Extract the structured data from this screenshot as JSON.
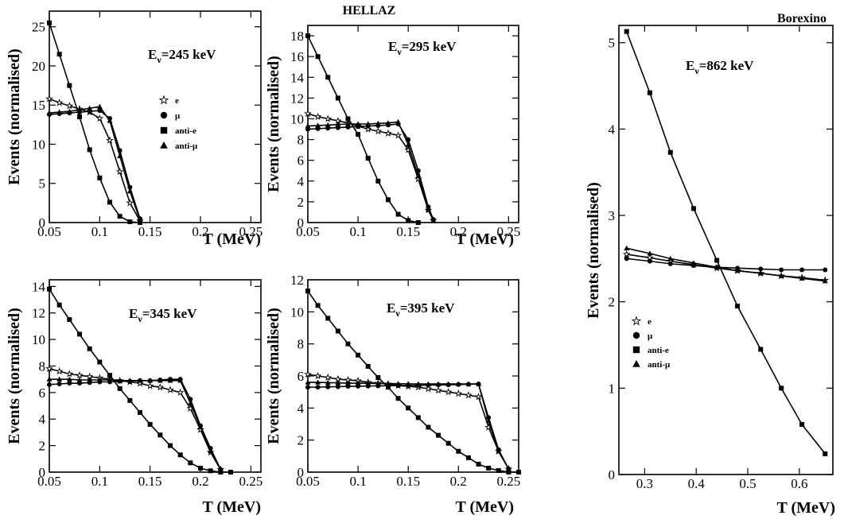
{
  "figure": {
    "group_titles": {
      "hellaz": "HELLAZ",
      "borexino": "Borexino"
    }
  },
  "legend_labels": [
    "e",
    "μ",
    "anti-e",
    "anti-μ"
  ],
  "chart_data": [
    {
      "id": "p245",
      "type": "line",
      "energy_label": {
        "main": "E",
        "sub": "ν",
        "rest": "=245 keV"
      },
      "xlabel": "T (MeV)",
      "ylabel": "Events (normalised)",
      "xlim": [
        0.05,
        0.26
      ],
      "ylim": [
        0,
        27
      ],
      "xticks": [
        0.05,
        0.1,
        0.15,
        0.2,
        0.25
      ],
      "xtick_labels": [
        "0.05",
        "0.1",
        "0.15",
        "0.2",
        "0.25"
      ],
      "yticks": [
        0,
        5,
        10,
        15,
        20,
        25
      ],
      "ytick_labels": [
        "0",
        "5",
        "10",
        "15",
        "20",
        "25"
      ],
      "legend": true,
      "series": [
        {
          "name": "e",
          "marker": "star",
          "x": [
            0.05,
            0.06,
            0.07,
            0.08,
            0.09,
            0.1,
            0.11,
            0.12,
            0.13,
            0.14
          ],
          "y": [
            15.8,
            15.3,
            14.9,
            14.5,
            14.1,
            13.3,
            10.5,
            6.5,
            2.5,
            0.2
          ]
        },
        {
          "name": "μ",
          "marker": "circle",
          "x": [
            0.05,
            0.06,
            0.07,
            0.08,
            0.09,
            0.1,
            0.11,
            0.12,
            0.13,
            0.14
          ],
          "y": [
            13.8,
            13.9,
            14.0,
            14.1,
            14.2,
            14.3,
            13.3,
            9.2,
            4.5,
            0.5
          ]
        },
        {
          "name": "anti-e",
          "marker": "square",
          "x": [
            0.05,
            0.06,
            0.07,
            0.08,
            0.09,
            0.1,
            0.11,
            0.12,
            0.13,
            0.14
          ],
          "y": [
            25.5,
            21.5,
            17.5,
            13.5,
            9.3,
            5.7,
            2.6,
            0.8,
            0.1,
            0.0
          ]
        },
        {
          "name": "anti-μ",
          "marker": "triangle",
          "x": [
            0.05,
            0.06,
            0.07,
            0.08,
            0.09,
            0.1,
            0.11,
            0.12,
            0.13,
            0.14
          ],
          "y": [
            14.0,
            14.1,
            14.2,
            14.4,
            14.6,
            14.8,
            13.0,
            8.5,
            4.0,
            0.3
          ]
        }
      ]
    },
    {
      "id": "p295",
      "type": "line",
      "energy_label": {
        "main": "E",
        "sub": "ν",
        "rest": "=295 keV"
      },
      "xlabel": "T (MeV)",
      "ylabel": "Events (normalised)",
      "xlim": [
        0.05,
        0.26
      ],
      "ylim": [
        0,
        19
      ],
      "xticks": [
        0.05,
        0.1,
        0.15,
        0.2,
        0.25
      ],
      "xtick_labels": [
        "0.05",
        "0.1",
        "0.15",
        "0.2",
        "0.25"
      ],
      "yticks": [
        0,
        2,
        4,
        6,
        8,
        10,
        12,
        14,
        16,
        18
      ],
      "ytick_labels": [
        "0",
        "2",
        "4",
        "6",
        "8",
        "10",
        "12",
        "14",
        "16",
        "18"
      ],
      "legend": false,
      "series": [
        {
          "name": "e",
          "marker": "star",
          "x": [
            0.05,
            0.06,
            0.07,
            0.08,
            0.09,
            0.1,
            0.11,
            0.12,
            0.13,
            0.14,
            0.15,
            0.16,
            0.17,
            0.175
          ],
          "y": [
            10.5,
            10.2,
            10.0,
            9.8,
            9.6,
            9.3,
            9.0,
            8.8,
            8.6,
            8.4,
            7.0,
            4.2,
            1.2,
            0.2
          ]
        },
        {
          "name": "μ",
          "marker": "circle",
          "x": [
            0.05,
            0.06,
            0.07,
            0.08,
            0.09,
            0.1,
            0.11,
            0.12,
            0.13,
            0.14,
            0.15,
            0.16,
            0.17,
            0.175
          ],
          "y": [
            9.0,
            9.05,
            9.1,
            9.15,
            9.2,
            9.25,
            9.3,
            9.35,
            9.4,
            9.5,
            8.0,
            5.0,
            1.5,
            0.3
          ]
        },
        {
          "name": "anti-e",
          "marker": "square",
          "x": [
            0.05,
            0.06,
            0.07,
            0.08,
            0.09,
            0.1,
            0.11,
            0.12,
            0.13,
            0.14,
            0.15,
            0.16
          ],
          "y": [
            18.0,
            16.0,
            14.0,
            12.0,
            10.0,
            8.5,
            6.2,
            4.0,
            2.2,
            0.8,
            0.2,
            0.0
          ]
        },
        {
          "name": "anti-μ",
          "marker": "triangle",
          "x": [
            0.05,
            0.06,
            0.07,
            0.08,
            0.09,
            0.1,
            0.11,
            0.12,
            0.13,
            0.14,
            0.15,
            0.16,
            0.17,
            0.175
          ],
          "y": [
            9.3,
            9.35,
            9.4,
            9.45,
            9.5,
            9.5,
            9.5,
            9.55,
            9.6,
            9.7,
            7.5,
            4.5,
            1.3,
            0.2
          ]
        }
      ]
    },
    {
      "id": "p345",
      "type": "line",
      "energy_label": {
        "main": "E",
        "sub": "ν",
        "rest": "=345 keV"
      },
      "xlabel": "T (MeV)",
      "ylabel": "Events (normalised)",
      "xlim": [
        0.05,
        0.26
      ],
      "ylim": [
        0,
        14.5
      ],
      "xticks": [
        0.05,
        0.1,
        0.15,
        0.2,
        0.25
      ],
      "xtick_labels": [
        "0.05",
        "0.1",
        "0.15",
        "0.2",
        "0.25"
      ],
      "yticks": [
        0,
        2,
        4,
        6,
        8,
        10,
        12,
        14
      ],
      "ytick_labels": [
        "0",
        "2",
        "4",
        "6",
        "8",
        "10",
        "12",
        "14"
      ],
      "legend": false,
      "series": [
        {
          "name": "e",
          "marker": "star",
          "x": [
            0.05,
            0.06,
            0.07,
            0.08,
            0.09,
            0.1,
            0.11,
            0.12,
            0.13,
            0.14,
            0.15,
            0.16,
            0.17,
            0.18,
            0.19,
            0.2,
            0.21,
            0.22
          ],
          "y": [
            7.8,
            7.6,
            7.4,
            7.3,
            7.2,
            7.1,
            7.0,
            6.9,
            6.8,
            6.7,
            6.5,
            6.4,
            6.2,
            6.0,
            4.8,
            3.2,
            1.5,
            0.2
          ]
        },
        {
          "name": "μ",
          "marker": "circle",
          "x": [
            0.05,
            0.06,
            0.07,
            0.08,
            0.09,
            0.1,
            0.11,
            0.12,
            0.13,
            0.14,
            0.15,
            0.16,
            0.17,
            0.18,
            0.19,
            0.2,
            0.21,
            0.22
          ],
          "y": [
            6.6,
            6.65,
            6.7,
            6.7,
            6.75,
            6.8,
            6.8,
            6.85,
            6.85,
            6.9,
            6.9,
            6.95,
            7.0,
            7.0,
            5.5,
            3.5,
            1.8,
            0.2
          ]
        },
        {
          "name": "anti-e",
          "marker": "square",
          "x": [
            0.05,
            0.06,
            0.07,
            0.08,
            0.09,
            0.1,
            0.11,
            0.12,
            0.13,
            0.14,
            0.15,
            0.16,
            0.17,
            0.18,
            0.19,
            0.2,
            0.21,
            0.22,
            0.23
          ],
          "y": [
            13.8,
            12.6,
            11.5,
            10.4,
            9.3,
            8.3,
            7.3,
            6.3,
            5.4,
            4.5,
            3.6,
            2.8,
            2.0,
            1.3,
            0.7,
            0.3,
            0.1,
            0.0,
            0.0
          ]
        },
        {
          "name": "anti-μ",
          "marker": "triangle",
          "x": [
            0.05,
            0.06,
            0.07,
            0.08,
            0.09,
            0.1,
            0.11,
            0.12,
            0.13,
            0.14,
            0.15,
            0.16,
            0.17,
            0.18,
            0.19,
            0.2,
            0.21,
            0.22
          ],
          "y": [
            7.0,
            7.0,
            7.0,
            6.95,
            6.95,
            6.95,
            6.95,
            6.9,
            6.9,
            6.9,
            6.9,
            6.9,
            6.9,
            6.9,
            5.2,
            3.4,
            1.6,
            0.2
          ]
        }
      ]
    },
    {
      "id": "p395",
      "type": "line",
      "energy_label": {
        "main": "E",
        "sub": "ν",
        "rest": "=395 keV"
      },
      "xlabel": "T (MeV)",
      "ylabel": "Events (normalised)",
      "xlim": [
        0.05,
        0.26
      ],
      "ylim": [
        0,
        12
      ],
      "xticks": [
        0.05,
        0.1,
        0.15,
        0.2,
        0.25
      ],
      "xtick_labels": [
        "0.05",
        "0.1",
        "0.15",
        "0.2",
        "0.25"
      ],
      "yticks": [
        0,
        2,
        4,
        6,
        8,
        10,
        12
      ],
      "ytick_labels": [
        "0",
        "2",
        "4",
        "6",
        "8",
        "10",
        "12"
      ],
      "legend": false,
      "series": [
        {
          "name": "e",
          "marker": "star",
          "x": [
            0.05,
            0.06,
            0.07,
            0.08,
            0.09,
            0.1,
            0.11,
            0.12,
            0.13,
            0.14,
            0.15,
            0.16,
            0.17,
            0.18,
            0.19,
            0.2,
            0.21,
            0.22,
            0.23,
            0.24,
            0.25
          ],
          "y": [
            6.1,
            6.0,
            5.9,
            5.8,
            5.75,
            5.7,
            5.6,
            5.55,
            5.5,
            5.4,
            5.35,
            5.3,
            5.2,
            5.1,
            5.0,
            4.9,
            4.8,
            4.7,
            2.8,
            1.3,
            0.2
          ]
        },
        {
          "name": "μ",
          "marker": "circle",
          "x": [
            0.05,
            0.06,
            0.07,
            0.08,
            0.09,
            0.1,
            0.11,
            0.12,
            0.13,
            0.14,
            0.15,
            0.16,
            0.17,
            0.18,
            0.19,
            0.2,
            0.21,
            0.22,
            0.23,
            0.24,
            0.25
          ],
          "y": [
            5.3,
            5.3,
            5.32,
            5.33,
            5.35,
            5.36,
            5.37,
            5.38,
            5.39,
            5.4,
            5.41,
            5.42,
            5.43,
            5.44,
            5.45,
            5.47,
            5.48,
            5.5,
            3.4,
            1.4,
            0.2
          ]
        },
        {
          "name": "anti-e",
          "marker": "square",
          "x": [
            0.05,
            0.06,
            0.07,
            0.08,
            0.09,
            0.1,
            0.11,
            0.12,
            0.13,
            0.14,
            0.15,
            0.16,
            0.17,
            0.18,
            0.19,
            0.2,
            0.21,
            0.22,
            0.23,
            0.24,
            0.25,
            0.26
          ],
          "y": [
            11.3,
            10.4,
            9.6,
            8.8,
            8.0,
            7.3,
            6.6,
            5.9,
            5.3,
            4.6,
            4.0,
            3.4,
            2.8,
            2.3,
            1.8,
            1.3,
            0.9,
            0.5,
            0.25,
            0.1,
            0.0,
            0.0
          ]
        },
        {
          "name": "anti-μ",
          "marker": "triangle",
          "x": [
            0.05,
            0.06,
            0.07,
            0.08,
            0.09,
            0.1,
            0.11,
            0.12,
            0.13,
            0.14,
            0.15,
            0.16,
            0.17,
            0.18,
            0.19,
            0.2,
            0.21,
            0.22,
            0.23,
            0.24,
            0.25
          ],
          "y": [
            5.6,
            5.6,
            5.58,
            5.57,
            5.55,
            5.55,
            5.54,
            5.53,
            5.52,
            5.52,
            5.51,
            5.5,
            5.5,
            5.5,
            5.5,
            5.5,
            5.5,
            5.5,
            3.2,
            1.3,
            0.2
          ]
        }
      ]
    },
    {
      "id": "p862",
      "type": "line",
      "energy_label": {
        "main": "E",
        "sub": "ν",
        "rest": "=862 keV"
      },
      "xlabel": "T (MeV)",
      "ylabel": "Events (normalised)",
      "xlim": [
        0.25,
        0.665
      ],
      "ylim": [
        0,
        5.2
      ],
      "xticks": [
        0.3,
        0.4,
        0.5,
        0.6
      ],
      "xtick_labels": [
        "0.3",
        "0.4",
        "0.5",
        "0.6"
      ],
      "yticks": [
        0,
        1,
        2,
        3,
        4,
        5
      ],
      "ytick_labels": [
        "0",
        "1",
        "2",
        "3",
        "4",
        "5"
      ],
      "legend": true,
      "series": [
        {
          "name": "e",
          "marker": "star",
          "x": [
            0.265,
            0.31,
            0.35,
            0.395,
            0.44,
            0.48,
            0.525,
            0.565,
            0.605,
            0.65
          ],
          "y": [
            2.55,
            2.51,
            2.47,
            2.43,
            2.39,
            2.36,
            2.33,
            2.3,
            2.28,
            2.25
          ]
        },
        {
          "name": "μ",
          "marker": "circle",
          "x": [
            0.265,
            0.31,
            0.35,
            0.395,
            0.44,
            0.48,
            0.525,
            0.565,
            0.605,
            0.65
          ],
          "y": [
            2.5,
            2.47,
            2.44,
            2.42,
            2.4,
            2.39,
            2.38,
            2.37,
            2.37,
            2.37
          ]
        },
        {
          "name": "anti-e",
          "marker": "square",
          "x": [
            0.265,
            0.31,
            0.35,
            0.395,
            0.44,
            0.48,
            0.525,
            0.565,
            0.605,
            0.65
          ],
          "y": [
            5.13,
            4.42,
            3.73,
            3.08,
            2.48,
            1.95,
            1.45,
            1.0,
            0.58,
            0.24
          ]
        },
        {
          "name": "anti-μ",
          "marker": "triangle",
          "x": [
            0.265,
            0.31,
            0.35,
            0.395,
            0.44,
            0.48,
            0.525,
            0.565,
            0.605,
            0.65
          ],
          "y": [
            2.62,
            2.56,
            2.5,
            2.45,
            2.4,
            2.36,
            2.33,
            2.3,
            2.27,
            2.24
          ]
        }
      ]
    }
  ]
}
